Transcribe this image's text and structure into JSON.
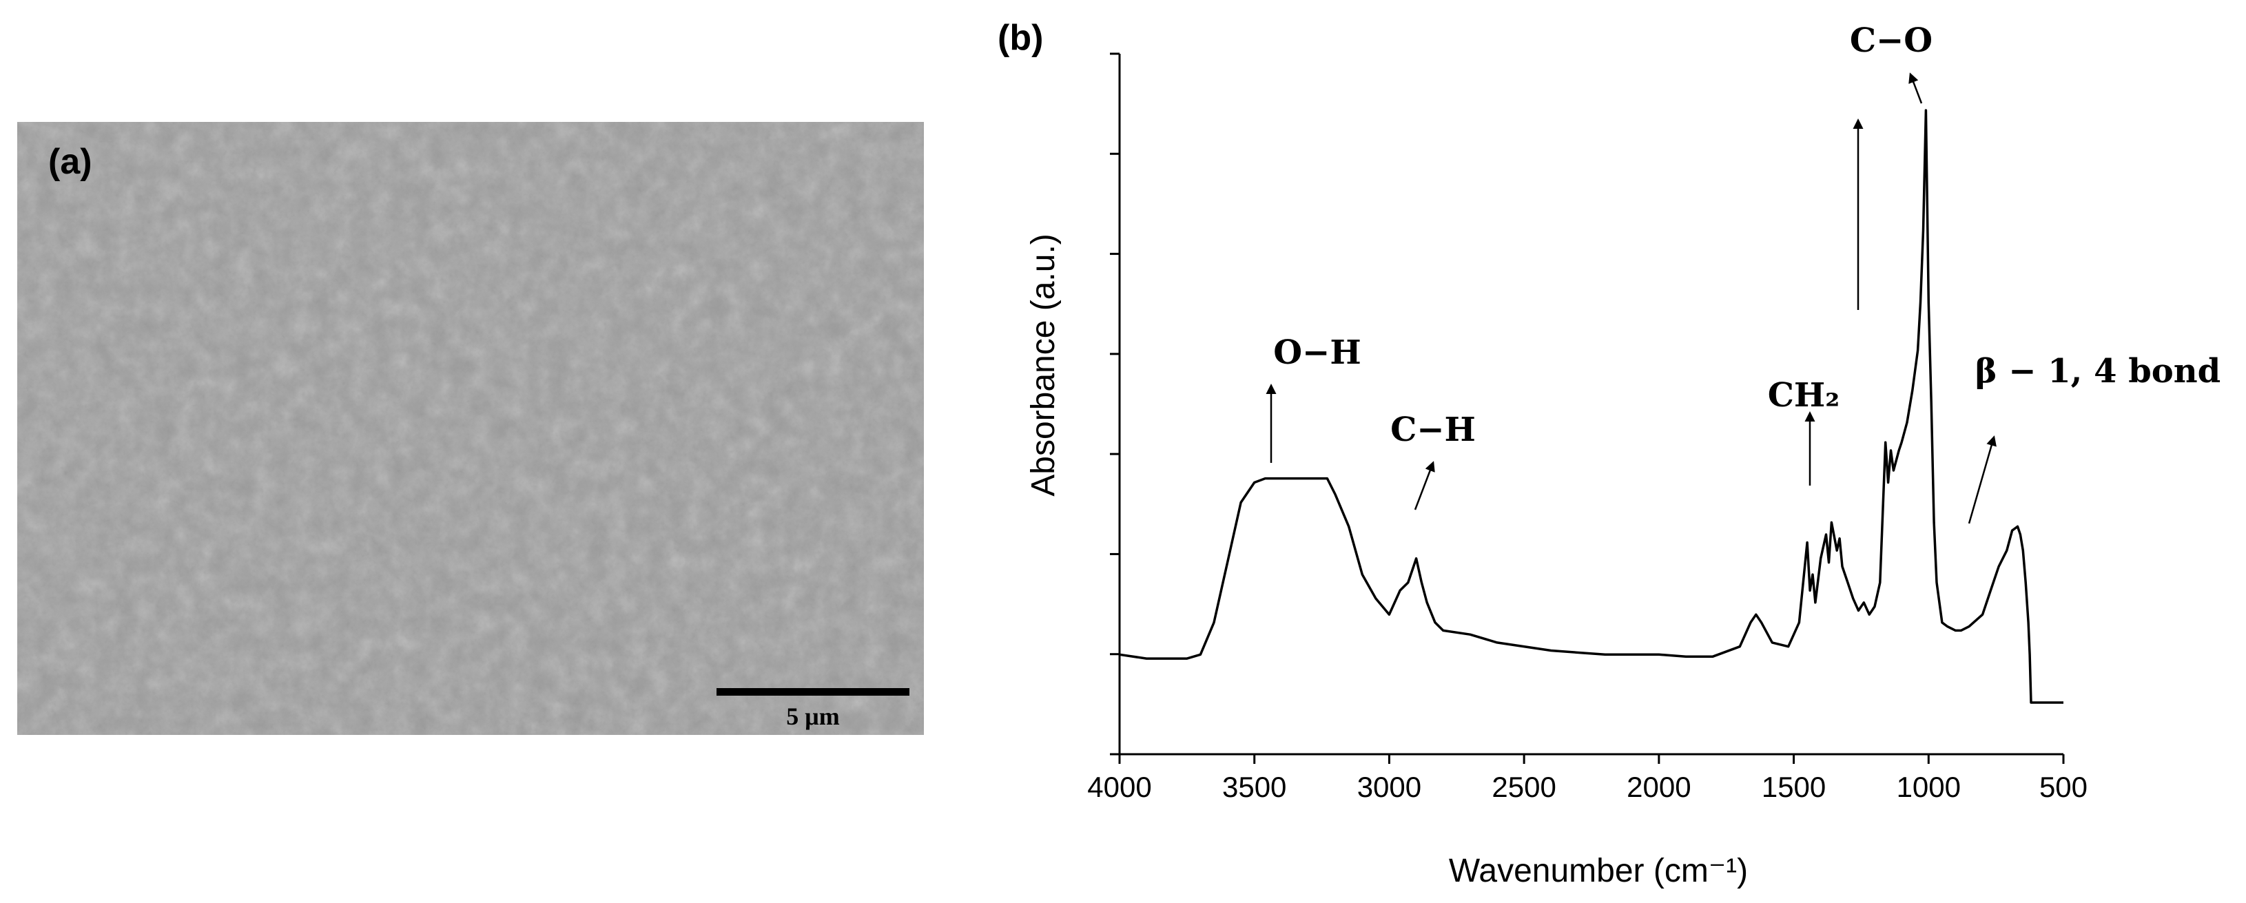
{
  "panel_a": {
    "label": "(a)",
    "scale_bar_label": "5 μm"
  },
  "chart_data": {
    "type": "line",
    "panel_label": "(b)",
    "xlabel": "Wavenumber (cm⁻¹)",
    "ylabel": "Absorbance (a.u.)",
    "xlim": [
      4000,
      500
    ],
    "x_reversed": true,
    "xticks": [
      4000,
      3500,
      3000,
      2500,
      2000,
      1500,
      1000,
      500
    ],
    "ylim": [
      0,
      1
    ],
    "y_tick_labels_shown": false,
    "grid": false,
    "series": [
      {
        "x": [
          4000,
          3900,
          3800,
          3750,
          3700,
          3650,
          3600,
          3550,
          3500,
          3460,
          3400,
          3300,
          3230,
          3200,
          3150,
          3100,
          3050,
          3000,
          2960,
          2930,
          2910,
          2900,
          2880,
          2860,
          2830,
          2800,
          2700,
          2600,
          2400,
          2200,
          2100,
          2000,
          1900,
          1800,
          1700,
          1660,
          1640,
          1620,
          1580,
          1520,
          1480,
          1450,
          1440,
          1430,
          1420,
          1400,
          1380,
          1370,
          1360,
          1340,
          1330,
          1320,
          1300,
          1280,
          1260,
          1240,
          1220,
          1200,
          1180,
          1160,
          1150,
          1140,
          1130,
          1110,
          1100,
          1080,
          1060,
          1040,
          1030,
          1020,
          1010,
          1000,
          990,
          980,
          970,
          950,
          930,
          900,
          880,
          850,
          800,
          770,
          740,
          710,
          690,
          670,
          660,
          650,
          640,
          630,
          625,
          620,
          600,
          550,
          500
        ],
        "y": [
          0.12,
          0.11,
          0.11,
          0.11,
          0.12,
          0.2,
          0.35,
          0.5,
          0.55,
          0.56,
          0.56,
          0.56,
          0.56,
          0.52,
          0.44,
          0.32,
          0.26,
          0.22,
          0.28,
          0.3,
          0.34,
          0.36,
          0.3,
          0.25,
          0.2,
          0.18,
          0.17,
          0.15,
          0.13,
          0.12,
          0.12,
          0.12,
          0.115,
          0.115,
          0.14,
          0.2,
          0.22,
          0.2,
          0.15,
          0.14,
          0.2,
          0.4,
          0.28,
          0.32,
          0.25,
          0.36,
          0.42,
          0.35,
          0.45,
          0.38,
          0.41,
          0.34,
          0.3,
          0.26,
          0.23,
          0.25,
          0.22,
          0.24,
          0.3,
          0.65,
          0.55,
          0.63,
          0.58,
          0.63,
          0.65,
          0.7,
          0.78,
          0.88,
          1.0,
          1.18,
          1.48,
          1.0,
          0.75,
          0.45,
          0.3,
          0.2,
          0.19,
          0.18,
          0.18,
          0.19,
          0.22,
          0.28,
          0.34,
          0.38,
          0.43,
          0.44,
          0.42,
          0.38,
          0.3,
          0.2,
          0.12,
          0.0,
          0.0,
          0.0,
          0.0
        ]
      }
    ],
    "annotations": [
      {
        "text": "O−H",
        "x": 3460
      },
      {
        "text": "C−H",
        "x": 2900
      },
      {
        "text": "CH₂",
        "x": 1430
      },
      {
        "text": "C−O",
        "x": 1030
      },
      {
        "text": "β − 1, 4 bond",
        "x": 670
      }
    ]
  }
}
